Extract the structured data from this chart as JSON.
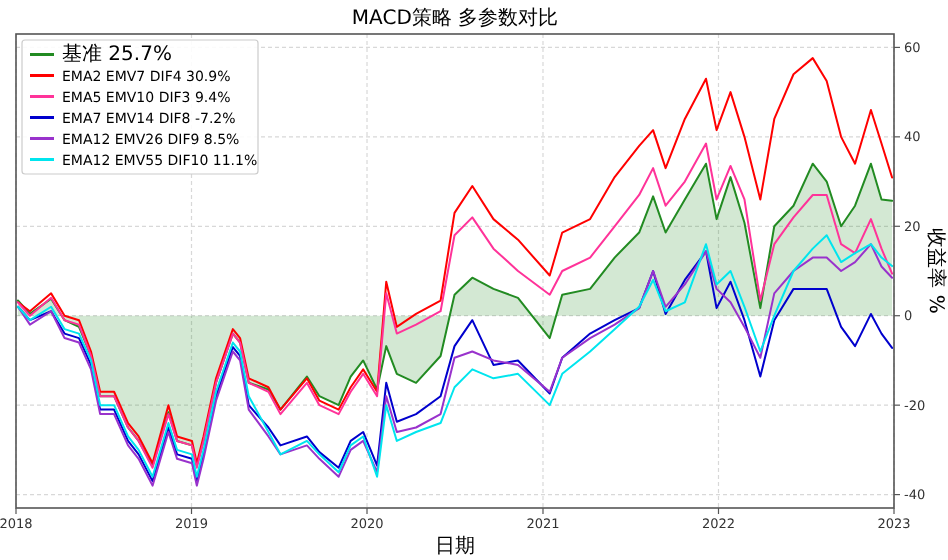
{
  "chart_data": {
    "type": "line",
    "title": "MACD策略 多参数对比",
    "xlabel": "日期",
    "ylabel": "收益率 %",
    "x": [
      "2018-01-05",
      "2018-01-30",
      "2018-03-15",
      "2018-04-12",
      "2018-05-12",
      "2018-06-06",
      "2018-06-25",
      "2018-07-24",
      "2018-08-22",
      "2018-09-13",
      "2018-10-12",
      "2018-11-14",
      "2018-12-02",
      "2019-01-02",
      "2019-01-12",
      "2019-01-26",
      "2019-02-21",
      "2019-03-28",
      "2019-04-12",
      "2019-04-30",
      "2019-06-10",
      "2019-07-05",
      "2019-08-29",
      "2019-09-24",
      "2019-11-03",
      "2019-11-28",
      "2019-12-24",
      "2020-01-22",
      "2020-02-10",
      "2020-03-03",
      "2020-04-12",
      "2020-06-02",
      "2020-07-01",
      "2020-08-07",
      "2020-09-20",
      "2020-11-10",
      "2021-01-15",
      "2021-02-10",
      "2021-04-09",
      "2021-05-30",
      "2021-07-20",
      "2021-08-18",
      "2021-09-13",
      "2021-10-23",
      "2021-12-06",
      "2021-12-28",
      "2022-01-26",
      "2022-02-24",
      "2022-03-29",
      "2022-04-27",
      "2022-06-06",
      "2022-07-16",
      "2022-08-14",
      "2022-09-13",
      "2022-10-12",
      "2022-11-14",
      "2022-12-06",
      "2022-12-28"
    ],
    "series": [
      {
        "name": "基准 25.7%",
        "type": "area",
        "color": "#228b22",
        "values": [
          3.4,
          0.4,
          3.8,
          -1,
          -2.5,
          -9,
          -18,
          -18,
          -25,
          -28,
          -33.5,
          -21.6,
          -28,
          -29,
          -33.5,
          -28,
          -15,
          -4,
          -6,
          -15,
          -16.5,
          -21,
          -13.6,
          -18,
          -20,
          -13.6,
          -10,
          -16.5,
          -6.8,
          -13,
          -15,
          -9,
          4.7,
          8.5,
          6,
          4,
          -5,
          4.7,
          6,
          13,
          18.6,
          26.7,
          18.6,
          26,
          34,
          21.6,
          31,
          20.8,
          1.7,
          20,
          24.6,
          34,
          30,
          20,
          24.6,
          34,
          26,
          25.7
        ]
      },
      {
        "name": "EMA2 EMV7 DIF4 30.9%",
        "color": "#ff0000",
        "values": [
          3,
          1,
          5,
          0,
          -1,
          -8,
          -17,
          -17,
          -24,
          -27,
          -33,
          -20,
          -27,
          -28,
          -33,
          -27,
          -14,
          -3,
          -5,
          -14,
          -16,
          -21,
          -14,
          -19,
          -21,
          -16,
          -12,
          -17,
          7.6,
          -2.5,
          0.4,
          3.4,
          23,
          29,
          21.6,
          17,
          9,
          18.6,
          21.6,
          31,
          38,
          41.5,
          33,
          44,
          53,
          41.5,
          50,
          40,
          26,
          44,
          54,
          57.6,
          52.5,
          40,
          34,
          46,
          38.5,
          30.9
        ]
      },
      {
        "name": "EMA5 EMV10 DIF3 9.4%",
        "color": "#ff3399",
        "values": [
          3,
          0,
          4,
          -1,
          -2,
          -9,
          -18,
          -18,
          -25,
          -28,
          -34,
          -22,
          -28,
          -29,
          -34,
          -28,
          -15,
          -4,
          -6,
          -15,
          -17,
          -22,
          -15,
          -20,
          -22,
          -17,
          -13,
          -18,
          5,
          -4,
          -2,
          1,
          18,
          22,
          15,
          10,
          4.7,
          10,
          13,
          20,
          27,
          33,
          24.6,
          30,
          38.5,
          26,
          33.5,
          26,
          3.4,
          16,
          22,
          27,
          27,
          16,
          14,
          21.6,
          15,
          9.4
        ]
      },
      {
        "name": "EMA7 EMV14 DIF8 -7.2%",
        "color": "#0000cd",
        "values": [
          2,
          -1,
          1,
          -4,
          -5,
          -11,
          -21,
          -21,
          -28,
          -31,
          -37,
          -25,
          -31,
          -32,
          -37,
          -31,
          -18,
          -7,
          -9,
          -20,
          -25,
          -29,
          -27,
          -30.5,
          -34,
          -28,
          -26,
          -33.5,
          -15,
          -23.7,
          -22,
          -18,
          -6.8,
          -1,
          -11,
          -10,
          -17.4,
          -9.4,
          -4,
          -1,
          1.7,
          10,
          0.4,
          8,
          14.4,
          1.7,
          7.6,
          -1,
          -13.6,
          -1,
          6,
          6,
          6,
          -2.5,
          -6.8,
          0.4,
          -4,
          -7.2
        ]
      },
      {
        "name": "EMA12 EMV26 DIF9 8.5%",
        "color": "#9932cc",
        "values": [
          2,
          -2,
          1,
          -5,
          -6,
          -12,
          -22,
          -22,
          -29,
          -32,
          -38,
          -26,
          -32,
          -33,
          -38,
          -32,
          -19,
          -8,
          -10,
          -21,
          -27,
          -31,
          -29,
          -32,
          -36,
          -30,
          -28,
          -35,
          -18,
          -26,
          -25,
          -22,
          -9.4,
          -8,
          -10,
          -11,
          -17,
          -9.4,
          -5,
          -2,
          1.7,
          10,
          2,
          7,
          14.4,
          6,
          3,
          -2.5,
          -9.4,
          5,
          10,
          13,
          13,
          10,
          12,
          16,
          11,
          8.5
        ]
      },
      {
        "name": "EMA12 EMV55 DIF10 11.1%",
        "color": "#00e5ee",
        "values": [
          2,
          -1,
          2,
          -3,
          -4,
          -10,
          -20,
          -20,
          -27,
          -30,
          -36,
          -24,
          -30,
          -31,
          -36,
          -30,
          -17,
          -6,
          -8,
          -18,
          -26,
          -31,
          -28,
          -31,
          -35,
          -29,
          -27,
          -36,
          -20,
          -28,
          -26,
          -24,
          -16,
          -12,
          -14,
          -13,
          -20,
          -13,
          -8,
          -3,
          2,
          8,
          1,
          3,
          16,
          7,
          10,
          2,
          -8,
          0,
          10,
          15,
          18,
          12,
          14,
          16,
          13,
          11.1
        ]
      }
    ],
    "xlim": [
      "2018",
      "2023"
    ],
    "xticks": [
      "2018",
      "2019",
      "2020",
      "2021",
      "2022",
      "2023"
    ],
    "ylim": [
      -43,
      63
    ],
    "yticks": [
      -40,
      -20,
      0,
      20,
      40,
      60
    ],
    "grid": true,
    "legend": "top left"
  }
}
